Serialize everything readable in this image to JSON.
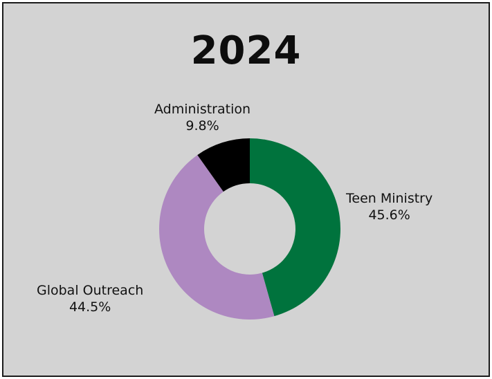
{
  "chart_data": {
    "type": "pie",
    "variant": "donut",
    "title": "2024",
    "slices": [
      {
        "label": "Teen Ministry",
        "percent_label": "45.6%",
        "value": 45.6,
        "color": "#00733d"
      },
      {
        "label": "Global Outreach",
        "percent_label": "44.5%",
        "value": 44.5,
        "color": "#ae88c1"
      },
      {
        "label": "Administration",
        "percent_label": "9.8%",
        "value": 9.8,
        "color": "#000000"
      }
    ],
    "start_angle_deg": 0,
    "direction": "clockwise",
    "legend": "none"
  }
}
